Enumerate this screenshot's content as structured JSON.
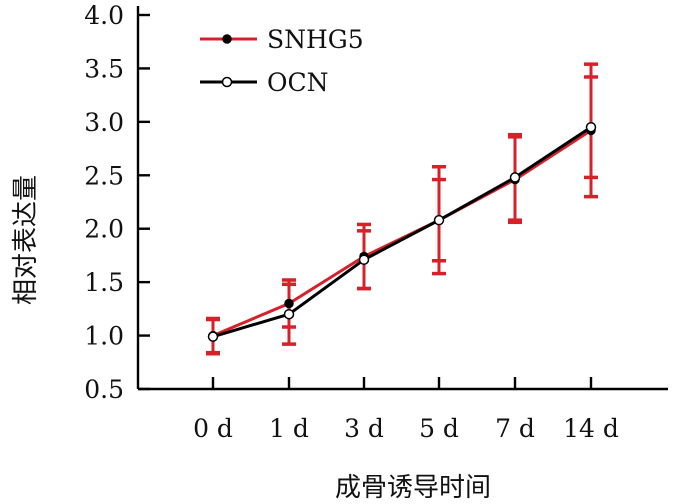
{
  "chart_data": {
    "type": "line",
    "categories": [
      "0 d",
      "1 d",
      "3 d",
      "5 d",
      "7 d",
      "14 d"
    ],
    "xlabel": "成骨诱导时间",
    "ylabel": "相对表达量",
    "ylim": [
      0.5,
      4.0
    ],
    "yticks": [
      "0.5",
      "1.0",
      "1.5",
      "2.0",
      "2.5",
      "3.0",
      "3.5",
      "4.0"
    ],
    "grid": false,
    "legend_position": "top-left",
    "series": [
      {
        "name": "SNHG5",
        "color": "#d8202a",
        "marker": "filled-circle",
        "values": [
          1.0,
          1.3,
          1.74,
          2.08,
          2.46,
          2.92
        ],
        "error": [
          0.16,
          0.22,
          0.3,
          0.5,
          0.4,
          0.62
        ]
      },
      {
        "name": "OCN",
        "color": "#000000",
        "marker": "open-circle",
        "values": [
          0.99,
          1.2,
          1.71,
          2.08,
          2.48,
          2.95
        ],
        "error": [
          0.16,
          0.28,
          0.27,
          0.38,
          0.4,
          0.47
        ]
      }
    ],
    "errorbar_color": "#d8202a"
  }
}
